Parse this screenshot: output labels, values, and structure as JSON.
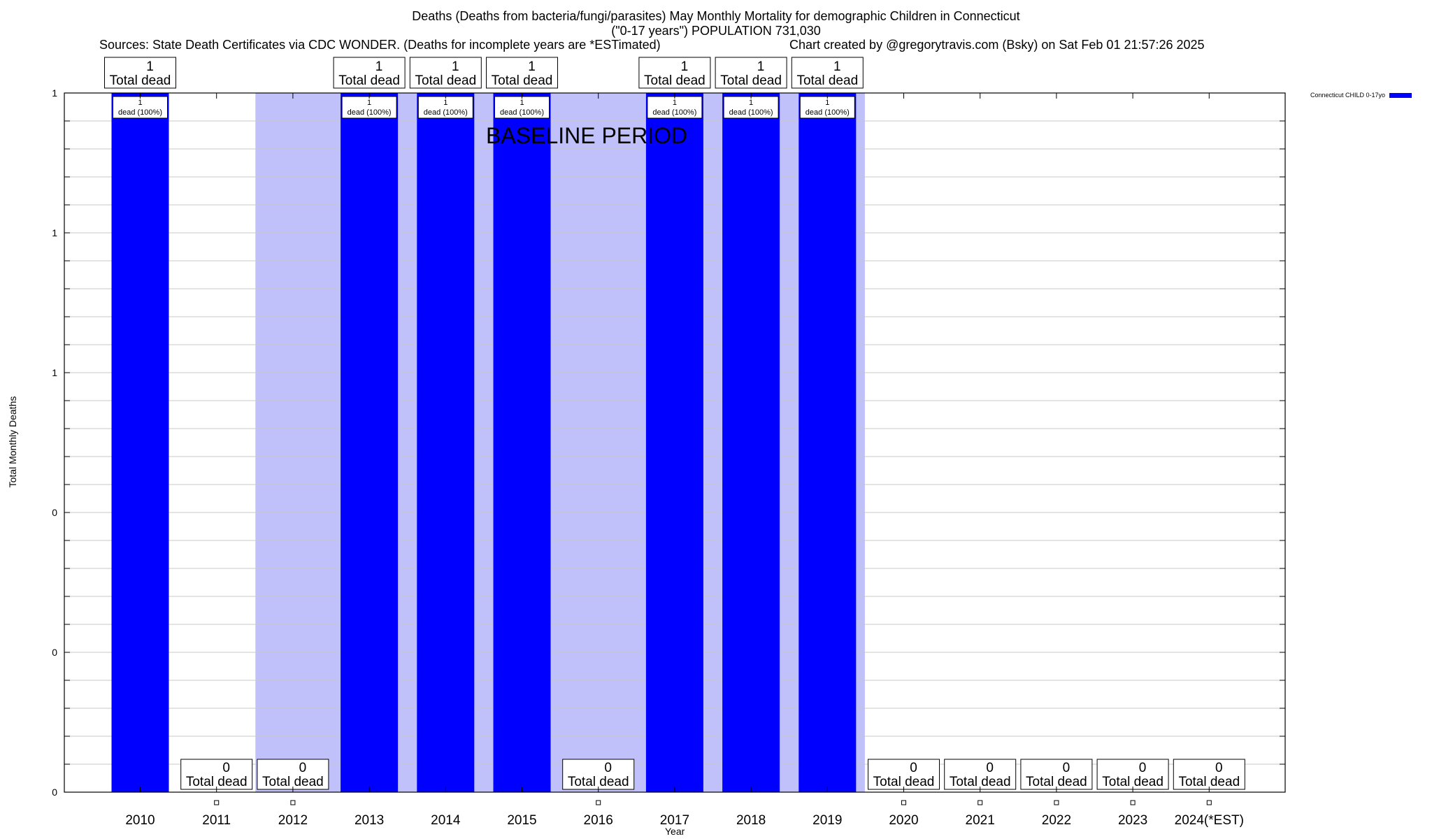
{
  "chart_data": {
    "type": "bar",
    "title_lines": [
      "Deaths (Deaths from bacteria/fungi/parasites) May Monthly Mortality for demographic Children in Connecticut",
      "(\"0-17 years\") POPULATION 731,030"
    ],
    "sources": "Sources: State Death Certificates via CDC WONDER. (Deaths for incomplete years are *ESTimated)",
    "credit": "Chart created by @gregorytravis.com (Bsky) on Sat Feb 01 21:57:26 2025",
    "xlabel": "Year",
    "ylabel": "Total Monthly Deaths",
    "ylim": [
      0,
      1
    ],
    "y_tick_labels": [
      "0",
      "0",
      "0",
      "1",
      "1",
      "1"
    ],
    "categories": [
      "2010",
      "2011",
      "2012",
      "2013",
      "2014",
      "2015",
      "2016",
      "2017",
      "2018",
      "2019",
      "2020",
      "2021",
      "2022",
      "2023",
      "2024(*EST)"
    ],
    "series": [
      {
        "name": "Connecticut CHILD 0-17yo",
        "values": [
          1,
          0,
          0,
          1,
          1,
          1,
          0,
          1,
          1,
          1,
          0,
          0,
          0,
          0,
          0
        ]
      }
    ],
    "total_label_text": "Total dead",
    "bar_label_suffix": "dead (100%)",
    "baseline_period": {
      "label": "BASELINE PERIOD",
      "from": "2012",
      "to": "2019"
    },
    "legend_position": "top-right",
    "grid": true,
    "colors": {
      "bar": "#0000ff",
      "baseline": "#c0c0fa",
      "grid": "#c8c8c8"
    }
  }
}
